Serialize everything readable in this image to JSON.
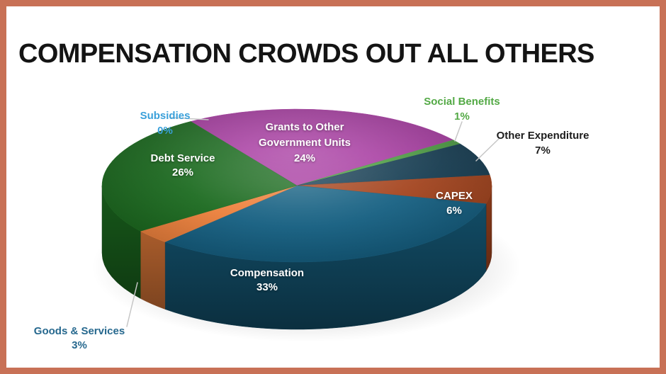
{
  "frame": {
    "border_color": "#c87156",
    "background": "#ffffff"
  },
  "title": "COMPENSATION CROWDS OUT ALL OTHERS",
  "chart_data": {
    "type": "pie",
    "style": "3d",
    "title": "COMPENSATION CROWDS OUT ALL OTHERS",
    "unit": "%",
    "start_angle_deg": 237,
    "clockwise": true,
    "legend": false,
    "slices": [
      {
        "id": "grants",
        "label": "Grants to Other Government Units",
        "value": 24,
        "pct_label": "24%",
        "label_lines": [
          "Grants to Other",
          "Government Units",
          "24%"
        ],
        "color": "#a83da2",
        "text_color": "#ffffff",
        "label_placement": "inside"
      },
      {
        "id": "social_benefits",
        "label": "Social Benefits",
        "value": 1,
        "pct_label": "1%",
        "label_lines": [
          "Social Benefits",
          "1%"
        ],
        "color": "#4e9d44",
        "text_color": "#53a945",
        "label_placement": "outside"
      },
      {
        "id": "other_expenditure",
        "label": "Other Expenditure",
        "value": 7,
        "pct_label": "7%",
        "label_lines": [
          "Other Expenditure",
          "7%"
        ],
        "color": "#183f54",
        "text_color": "#1c1c1c",
        "label_placement": "outside"
      },
      {
        "id": "capex",
        "label": "CAPEX",
        "value": 6,
        "pct_label": "6%",
        "label_lines": [
          "CAPEX",
          "6%"
        ],
        "color": "#a5451f",
        "text_color": "#ffffff",
        "label_placement": "inside"
      },
      {
        "id": "compensation",
        "label": "Compensation",
        "value": 33,
        "pct_label": "33%",
        "label_lines": [
          "Compensation",
          "33%"
        ],
        "color": "#176183",
        "text_color": "#ffffff",
        "label_placement": "inside"
      },
      {
        "id": "goods_services",
        "label": "Goods & Services",
        "value": 3,
        "pct_label": "3%",
        "label_lines": [
          "Goods & Services",
          "3%"
        ],
        "color": "#ed813d",
        "text_color": "#26688e",
        "label_placement": "outside"
      },
      {
        "id": "debt_service",
        "label": "Debt Service",
        "value": 26,
        "pct_label": "26%",
        "label_lines": [
          "Debt Service",
          "26%"
        ],
        "color": "#1c6b20",
        "text_color": "#ffffff",
        "label_placement": "inside"
      },
      {
        "id": "subsidies",
        "label": "Subsidies",
        "value": 0,
        "pct_label": "0%",
        "label_lines": [
          "Subsidies",
          "0%"
        ],
        "color": "#3aa0da",
        "text_color": "#3aa0da",
        "label_placement": "outside"
      }
    ]
  }
}
